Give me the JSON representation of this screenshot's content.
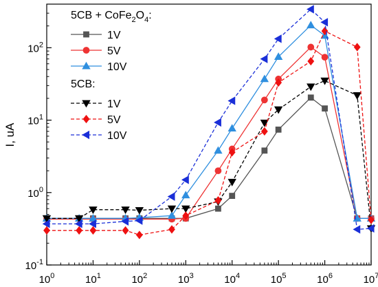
{
  "chart_data": {
    "type": "line",
    "xscale": "log",
    "yscale": "log",
    "xlim": [
      1,
      10000000
    ],
    "ylim": [
      0.1,
      400
    ],
    "xlabel": "",
    "ylabel": "I, uA",
    "x_ticks": [
      {
        "value": 1,
        "base": "10",
        "exp": "0"
      },
      {
        "value": 10,
        "base": "10",
        "exp": "1"
      },
      {
        "value": 100,
        "base": "10",
        "exp": "2"
      },
      {
        "value": 1000,
        "base": "10",
        "exp": "3"
      },
      {
        "value": 10000,
        "base": "10",
        "exp": "4"
      },
      {
        "value": 100000,
        "base": "10",
        "exp": "5"
      },
      {
        "value": 1000000,
        "base": "10",
        "exp": "6"
      },
      {
        "value": 10000000,
        "base": "10",
        "exp": "7"
      }
    ],
    "y_ticks": [
      {
        "value": 0.1,
        "base": "10",
        "exp": "-1"
      },
      {
        "value": 1,
        "base": "10",
        "exp": "0"
      },
      {
        "value": 10,
        "base": "10",
        "exp": "1"
      },
      {
        "value": 100,
        "base": "10",
        "exp": "2"
      }
    ],
    "legend": {
      "position": "top-left",
      "group1_title": {
        "text1": "5CB + CoFe",
        "sub1": "2",
        "text2": "O",
        "sub2": "4",
        "text3": ":"
      },
      "group2_title": "5CB:"
    },
    "series": [
      {
        "name": "1V",
        "group": 1,
        "color": "#555555",
        "dash": false,
        "marker": "square",
        "x": [
          1,
          5,
          10,
          50,
          100,
          500,
          1000,
          5000,
          10000,
          50000,
          100000,
          500000,
          1000000,
          5000000,
          10000000
        ],
        "y": [
          0.44,
          0.44,
          0.44,
          0.44,
          0.44,
          0.44,
          0.44,
          0.6,
          0.9,
          3.8,
          7.4,
          20.5,
          14.5,
          0.44,
          0.44
        ]
      },
      {
        "name": "5V",
        "group": 1,
        "color": "#ee3333",
        "dash": false,
        "marker": "circle",
        "x": [
          1,
          5,
          10,
          50,
          100,
          500,
          1000,
          5000,
          10000,
          50000,
          100000,
          500000,
          1000000,
          5000000,
          10000000
        ],
        "y": [
          0.43,
          0.43,
          0.43,
          0.43,
          0.43,
          0.43,
          0.44,
          2.0,
          4.0,
          19,
          37,
          102,
          74,
          0.44,
          0.44
        ]
      },
      {
        "name": "10V",
        "group": 1,
        "color": "#2f8fdf",
        "dash": false,
        "marker": "triangle-up",
        "x": [
          1,
          5,
          10,
          50,
          100,
          500,
          1000,
          5000,
          10000,
          50000,
          100000,
          500000,
          1000000,
          5000000,
          10000000
        ],
        "y": [
          0.44,
          0.44,
          0.44,
          0.44,
          0.45,
          0.48,
          0.92,
          3.8,
          7.7,
          37,
          75,
          205,
          147,
          0.44,
          0.44
        ]
      },
      {
        "name": "1V",
        "group": 2,
        "color": "#000000",
        "dash": true,
        "marker": "triangle-down",
        "x": [
          1,
          5,
          10,
          50,
          100,
          500,
          1000,
          5000,
          10000,
          50000,
          100000,
          500000,
          1000000,
          5000000,
          10000000
        ],
        "y": [
          0.44,
          0.44,
          0.58,
          0.58,
          0.57,
          0.6,
          0.6,
          0.75,
          1.4,
          9.2,
          14,
          29,
          35,
          22,
          0.32
        ]
      },
      {
        "name": "5V",
        "group": 2,
        "color": "#ee1111",
        "dash": true,
        "marker": "diamond",
        "x": [
          1,
          5,
          10,
          50,
          100,
          500,
          1000,
          5000,
          10000,
          50000,
          100000,
          500000,
          1000000,
          5000000,
          10000000
        ],
        "y": [
          0.3,
          0.3,
          0.3,
          0.3,
          0.26,
          0.31,
          0.48,
          0.78,
          3.6,
          7,
          33,
          65,
          170,
          102,
          0.42
        ]
      },
      {
        "name": "10V",
        "group": 2,
        "color": "#1a2fd8",
        "dash": true,
        "marker": "triangle-left",
        "x": [
          1,
          5,
          10,
          50,
          100,
          500,
          1000,
          5000,
          10000,
          50000,
          100000,
          500000,
          1000000,
          5000000,
          10000000
        ],
        "y": [
          0.37,
          0.37,
          0.37,
          0.4,
          0.41,
          0.88,
          1.5,
          9.3,
          18.5,
          70,
          133,
          340,
          225,
          0.31,
          0.32
        ]
      }
    ]
  }
}
